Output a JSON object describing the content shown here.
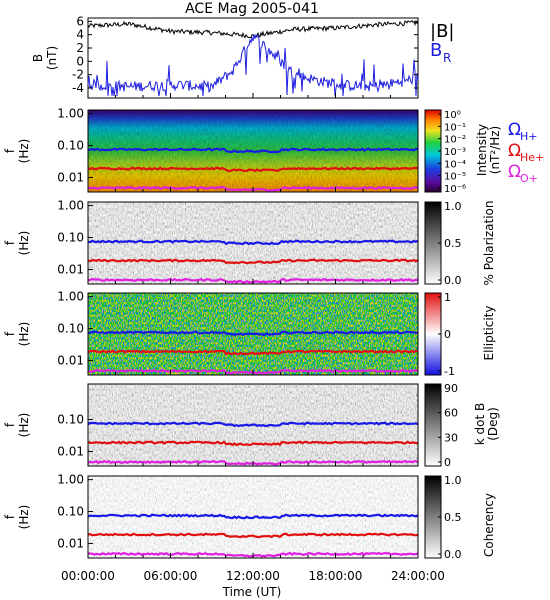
{
  "title": "ACE Mag 2005-041",
  "time_axis": {
    "label": "Time (UT)",
    "ticks": [
      "00:00:00",
      "06:00:00",
      "12:00:00",
      "18:00:00",
      "24:00:00"
    ],
    "range_hours": [
      0,
      24
    ]
  },
  "colors": {
    "B_mag": "#000000",
    "B_R": "#2020e0",
    "omega_H": "#1a1ae6",
    "omega_He": "#e01010",
    "omega_O": "#e020e0"
  },
  "chart_data": [
    {
      "type": "line",
      "panel": "field",
      "ylabel": "B (nT)",
      "ylim": [
        -5.5,
        6.5
      ],
      "yticks": [
        "6",
        "4",
        "2",
        "0",
        "-2",
        "-4"
      ],
      "legend": [
        "|B|",
        "B_R"
      ],
      "series": [
        {
          "name": "|B|",
          "x_hours": [
            0,
            3,
            6,
            9,
            12,
            15,
            18,
            21,
            24
          ],
          "values": [
            5.3,
            5.6,
            4.5,
            4.3,
            3.8,
            4.8,
            5.0,
            5.5,
            5.8
          ]
        },
        {
          "name": "B_R",
          "x_hours": [
            0,
            3,
            6,
            9,
            10.5,
            12,
            13,
            15,
            18,
            21,
            24
          ],
          "values": [
            -3.5,
            -3.8,
            -3.5,
            -3.8,
            -1.5,
            3.8,
            2.0,
            -2.0,
            -3.5,
            -3.8,
            -2.5
          ]
        }
      ]
    },
    {
      "type": "heatmap",
      "panel": "intensity",
      "ylabel": "f (Hz)",
      "yscale": "log",
      "yticks": [
        "1.00",
        "0.10",
        "0.01"
      ],
      "colorbar": {
        "label": "Intensity (nT²/Hz)",
        "ticks": [
          "10⁰",
          "10⁻¹",
          "10⁻²",
          "10⁻³",
          "10⁻⁴",
          "10⁻⁵",
          "10⁻⁶"
        ],
        "colormap": "rainbow"
      },
      "legend": [
        "Ω_H+",
        "Ω_He+",
        "Ω_O+"
      ]
    },
    {
      "type": "heatmap",
      "panel": "polarization",
      "ylabel": "f (Hz)",
      "yscale": "log",
      "yticks": [
        "1.00",
        "0.10",
        "0.01"
      ],
      "colorbar": {
        "label": "% Polarization",
        "ticks": [
          "1.0",
          "0.5",
          "0.0"
        ],
        "colormap": "gray"
      }
    },
    {
      "type": "heatmap",
      "panel": "ellipticity",
      "ylabel": "f (Hz)",
      "yscale": "log",
      "yticks": [
        "1.00",
        "0.10",
        "0.01"
      ],
      "colorbar": {
        "label": "Ellipticity",
        "ticks": [
          "1",
          "0",
          "-1"
        ],
        "colormap": "blue-white-red"
      }
    },
    {
      "type": "heatmap",
      "panel": "kdotb",
      "ylabel": "f (Hz)",
      "yscale": "log",
      "yticks": [
        "0.10",
        "0.01"
      ],
      "colorbar": {
        "label": "k dot B (Deg)",
        "ticks": [
          "90",
          "60",
          "30",
          "0"
        ],
        "colormap": "gray"
      }
    },
    {
      "type": "heatmap",
      "panel": "coherency",
      "ylabel": "f (Hz)",
      "yscale": "log",
      "yticks": [
        "1.00",
        "0.10",
        "0.01"
      ],
      "colorbar": {
        "label": "Coherency",
        "ticks": [
          "1.0",
          "0.5",
          "0.0"
        ],
        "colormap": "gray"
      }
    }
  ],
  "gyrofrequency_lines_hz": {
    "H+": 0.075,
    "He+": 0.019,
    "O+": 0.0047
  },
  "labels": {
    "b_axis_top": "B",
    "b_axis_bottom": "(nT)",
    "f_axis_top": "f",
    "f_axis_bottom": "(Hz)",
    "legend_absB": "|B|",
    "legend_BR_main": "B",
    "legend_BR_sub": "R",
    "omega": "Ω",
    "sub_H": "H+",
    "sub_He": "He+",
    "sub_O": "O+",
    "cb1_top": "Intensity",
    "cb1_bottom": "(nT²/Hz)",
    "cb2": "% Polarization",
    "cb3": "Ellipticity",
    "cb4_top": "k dot B",
    "cb4_bottom": "(Deg)",
    "cb5": "Coherency"
  }
}
